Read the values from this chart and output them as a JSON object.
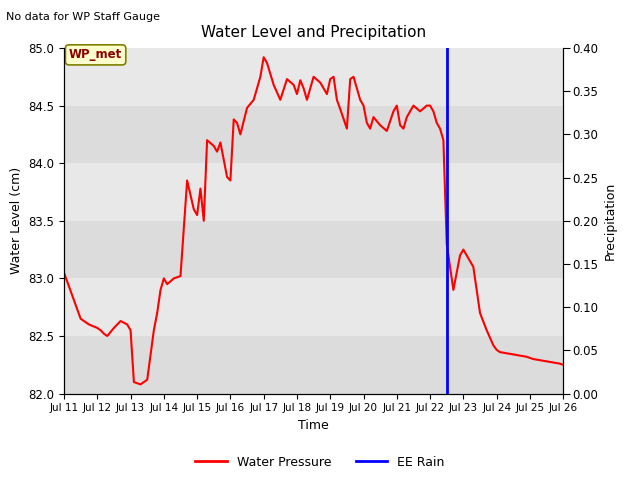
{
  "title": "Water Level and Precipitation",
  "subtitle": "No data for WP Staff Gauge",
  "xlabel": "Time",
  "ylabel_left": "Water Level (cm)",
  "ylabel_right": "Precipitation",
  "ylim_left": [
    82.0,
    85.0
  ],
  "ylim_right": [
    0.0,
    0.4
  ],
  "yticks_left": [
    82.0,
    82.5,
    83.0,
    83.5,
    84.0,
    84.5,
    85.0
  ],
  "yticks_right": [
    0.0,
    0.05,
    0.1,
    0.15,
    0.2,
    0.25,
    0.3,
    0.35,
    0.4
  ],
  "xlim": [
    0,
    15
  ],
  "xtick_labels": [
    "Jul 11",
    "Jul 12",
    "Jul 13",
    "Jul 14",
    "Jul 15",
    "Jul 16",
    "Jul 17",
    "Jul 18",
    "Jul 19",
    "Jul 20",
    "Jul 21",
    "Jul 22",
    "Jul 23",
    "Jul 24",
    "Jul 25",
    "Jul 26"
  ],
  "xtick_positions": [
    0,
    1,
    2,
    3,
    4,
    5,
    6,
    7,
    8,
    9,
    10,
    11,
    12,
    13,
    14,
    15
  ],
  "vline_x": 11.5,
  "vline_color": "blue",
  "wp_met_label": "WP_met",
  "legend_entries": [
    "Water Pressure",
    "EE Rain"
  ],
  "water_pressure_color": "red",
  "bg_band_colors": [
    "#dcdcdc",
    "#e8e8e8"
  ],
  "band_edges": [
    82.0,
    82.5,
    83.0,
    83.5,
    84.0,
    84.5,
    85.0
  ],
  "water_level_x": [
    0.0,
    0.25,
    0.5,
    0.75,
    1.0,
    1.1,
    1.2,
    1.3,
    1.5,
    1.7,
    1.9,
    2.0,
    2.1,
    2.3,
    2.5,
    2.7,
    2.8,
    2.9,
    3.0,
    3.1,
    3.3,
    3.5,
    3.7,
    3.9,
    4.0,
    4.1,
    4.2,
    4.3,
    4.5,
    4.6,
    4.7,
    4.9,
    5.0,
    5.1,
    5.2,
    5.3,
    5.5,
    5.7,
    5.9,
    6.0,
    6.1,
    6.3,
    6.5,
    6.7,
    6.9,
    7.0,
    7.1,
    7.2,
    7.3,
    7.5,
    7.7,
    7.9,
    8.0,
    8.1,
    8.2,
    8.3,
    8.5,
    8.6,
    8.7,
    8.9,
    9.0,
    9.1,
    9.2,
    9.3,
    9.5,
    9.7,
    9.9,
    10.0,
    10.1,
    10.2,
    10.3,
    10.5,
    10.7,
    10.9,
    11.0,
    11.1,
    11.2,
    11.3,
    11.4,
    11.5,
    11.7,
    11.9,
    12.0,
    12.1,
    12.3,
    12.5,
    12.7,
    12.9,
    13.0,
    13.1,
    13.3,
    13.5,
    13.7,
    13.9,
    14.0,
    14.1,
    14.3,
    14.5,
    14.7,
    14.9,
    15.0
  ],
  "water_level_y": [
    83.05,
    82.85,
    82.65,
    82.6,
    82.57,
    82.55,
    82.52,
    82.5,
    82.57,
    82.63,
    82.6,
    82.55,
    82.1,
    82.08,
    82.12,
    82.55,
    82.7,
    82.9,
    83.0,
    82.95,
    83.0,
    83.02,
    83.85,
    83.6,
    83.55,
    83.78,
    83.5,
    84.2,
    84.15,
    84.1,
    84.18,
    83.88,
    83.85,
    84.38,
    84.35,
    84.25,
    84.48,
    84.55,
    84.75,
    84.92,
    84.87,
    84.68,
    84.55,
    84.73,
    84.68,
    84.6,
    84.72,
    84.65,
    84.55,
    84.75,
    84.7,
    84.6,
    84.73,
    84.75,
    84.55,
    84.47,
    84.3,
    84.73,
    84.75,
    84.55,
    84.5,
    84.35,
    84.3,
    84.4,
    84.33,
    84.28,
    84.45,
    84.5,
    84.33,
    84.3,
    84.4,
    84.5,
    84.45,
    84.5,
    84.5,
    84.45,
    84.35,
    84.3,
    84.2,
    83.3,
    82.9,
    83.2,
    83.25,
    83.2,
    83.1,
    82.7,
    82.55,
    82.42,
    82.38,
    82.36,
    82.35,
    82.34,
    82.33,
    82.32,
    82.31,
    82.3,
    82.29,
    82.28,
    82.27,
    82.26,
    82.25
  ]
}
